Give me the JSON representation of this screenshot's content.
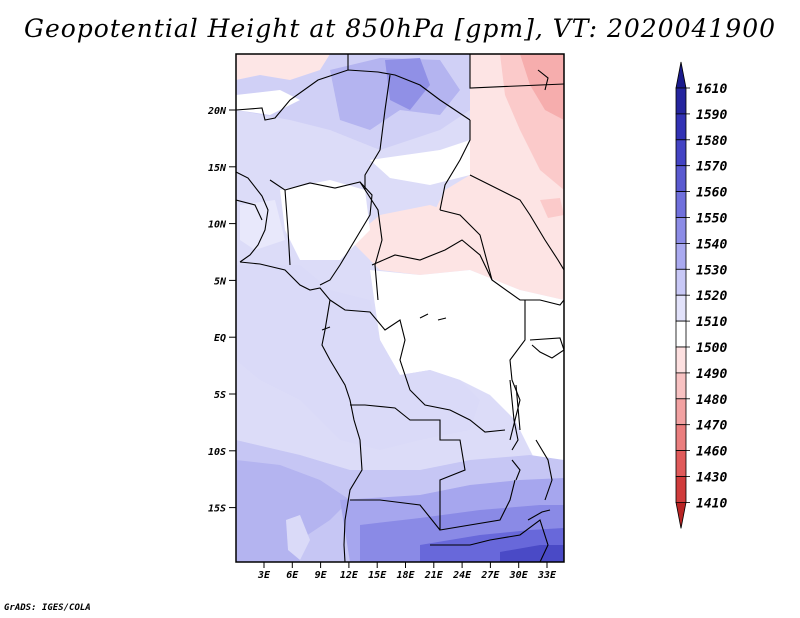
{
  "title": "Geopotential Height at 850hPa [gpm], VT: 2020041900",
  "footer": "GrADS: IGES/COLA",
  "map": {
    "lat_labels": [
      "20N",
      "15N",
      "10N",
      "5N",
      "EQ",
      "5S",
      "10S",
      "15S"
    ],
    "lon_labels": [
      "3E",
      "6E",
      "9E",
      "12E",
      "15E",
      "18E",
      "21E",
      "24E",
      "27E",
      "30E",
      "33E"
    ]
  },
  "colorbar": {
    "levels": [
      "1610",
      "1590",
      "1580",
      "1570",
      "1560",
      "1550",
      "1540",
      "1530",
      "1520",
      "1510",
      "1500",
      "1490",
      "1480",
      "1470",
      "1460",
      "1430",
      "1410"
    ],
    "colors": [
      "#1a1a8c",
      "#25259e",
      "#3232b4",
      "#4444c4",
      "#5a5ad0",
      "#7070dc",
      "#8c8ce6",
      "#aaaaf0",
      "#c8c8f6",
      "#e2e2fa",
      "#ffffff",
      "#fde0e0",
      "#f8c2c2",
      "#f2a2a2",
      "#ea7e7e",
      "#e05a5a",
      "#d03c3c",
      "#b82424"
    ]
  }
}
